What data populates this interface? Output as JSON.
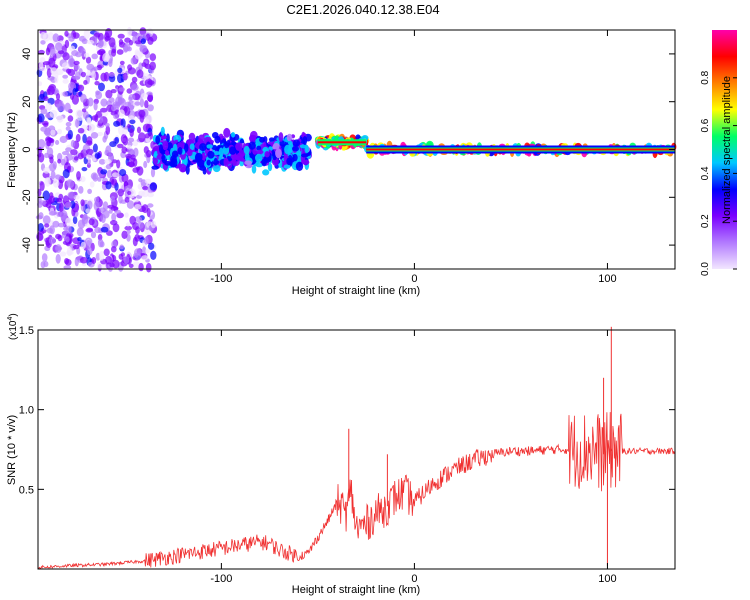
{
  "title": "C2E1.2026.040.12.38.E04",
  "chart_data": [
    {
      "type": "heatmap",
      "xlabel": "Height of straight line (km)",
      "ylabel": "Frequency (Hz)",
      "xlim": [
        -195,
        135
      ],
      "ylim": [
        -50,
        50
      ],
      "xticks": [
        -100,
        0,
        100
      ],
      "xtick_labels": [
        "-100",
        "0",
        "100"
      ],
      "yticks": [
        -40,
        -20,
        0,
        20,
        40
      ],
      "ytick_labels": [
        "-40",
        "-20",
        "0",
        "20",
        "40"
      ],
      "colorbar": {
        "label": "Normalized spectral amplitude",
        "range": [
          0,
          1
        ],
        "ticks": [
          0.0,
          0.2,
          0.4,
          0.6,
          0.8
        ],
        "tick_labels": [
          "0.0",
          "0.2",
          "0.4",
          "0.6",
          "0.8"
        ],
        "colors": [
          "#f2e6ff",
          "#b27aff",
          "#7a00ff",
          "#0000ff",
          "#00c8ff",
          "#00ff66",
          "#ffff00",
          "#ff8000",
          "#ff0000",
          "#ff00aa"
        ]
      },
      "regions": [
        {
          "x_range": [
            -195,
            -135
          ],
          "freq_center": 0,
          "freq_spread": 50,
          "amplitude": 0.15,
          "description": "broadband noise"
        },
        {
          "x_range": [
            -135,
            -55
          ],
          "freq_center": -1,
          "freq_spread": 8,
          "amplitude": 0.4
        },
        {
          "x_range": [
            -50,
            -25
          ],
          "freq_center": 3,
          "freq_spread": 2,
          "amplitude": 0.85
        },
        {
          "x_range": [
            -25,
            135
          ],
          "freq_center": 0,
          "freq_spread": 2,
          "amplitude": 0.9
        }
      ]
    },
    {
      "type": "line",
      "xlabel": "Height of straight line (km)",
      "ylabel": "SNR (10 * v/v)",
      "multiplier": "(x10",
      "multiplier_exp": "4",
      "multiplier_close": ")",
      "xlim": [
        -195,
        135
      ],
      "ylim": [
        0,
        1.5
      ],
      "xticks": [
        -100,
        0,
        100
      ],
      "xtick_labels": [
        "-100",
        "0",
        "100"
      ],
      "yticks": [
        0.5,
        1.0,
        1.5
      ],
      "ytick_labels": [
        "0.5",
        "1.0",
        "1.5"
      ],
      "color": "#f03030",
      "series": [
        {
          "name": "SNR",
          "x": [
            -195,
            -180,
            -160,
            -140,
            -130,
            -120,
            -110,
            -100,
            -90,
            -80,
            -75,
            -70,
            -65,
            -60,
            -55,
            -50,
            -45,
            -40,
            -35,
            -33,
            -30,
            -25,
            -20,
            -15,
            -10,
            -5,
            0,
            5,
            10,
            20,
            30,
            40,
            50,
            60,
            70,
            80,
            85,
            90,
            95,
            98,
            100,
            102,
            104,
            106,
            110,
            120,
            135
          ],
          "y": [
            0.01,
            0.02,
            0.03,
            0.05,
            0.07,
            0.09,
            0.11,
            0.13,
            0.15,
            0.17,
            0.16,
            0.12,
            0.1,
            0.08,
            0.1,
            0.2,
            0.3,
            0.42,
            0.35,
            0.5,
            0.25,
            0.28,
            0.35,
            0.38,
            0.45,
            0.48,
            0.42,
            0.48,
            0.54,
            0.62,
            0.68,
            0.72,
            0.74,
            0.74,
            0.75,
            0.75,
            0.75,
            0.75,
            0.74,
            0.72,
            0.74,
            0.74,
            0.74,
            0.74,
            0.74,
            0.74,
            0.74
          ]
        }
      ],
      "spikes": [
        {
          "x": -34,
          "y": 0.88
        },
        {
          "x": -14,
          "y": 0.72
        },
        {
          "x": 102,
          "y": 1.52
        },
        {
          "x": 100,
          "y": 0.02
        },
        {
          "x": 98,
          "y": 1.2
        }
      ]
    }
  ]
}
